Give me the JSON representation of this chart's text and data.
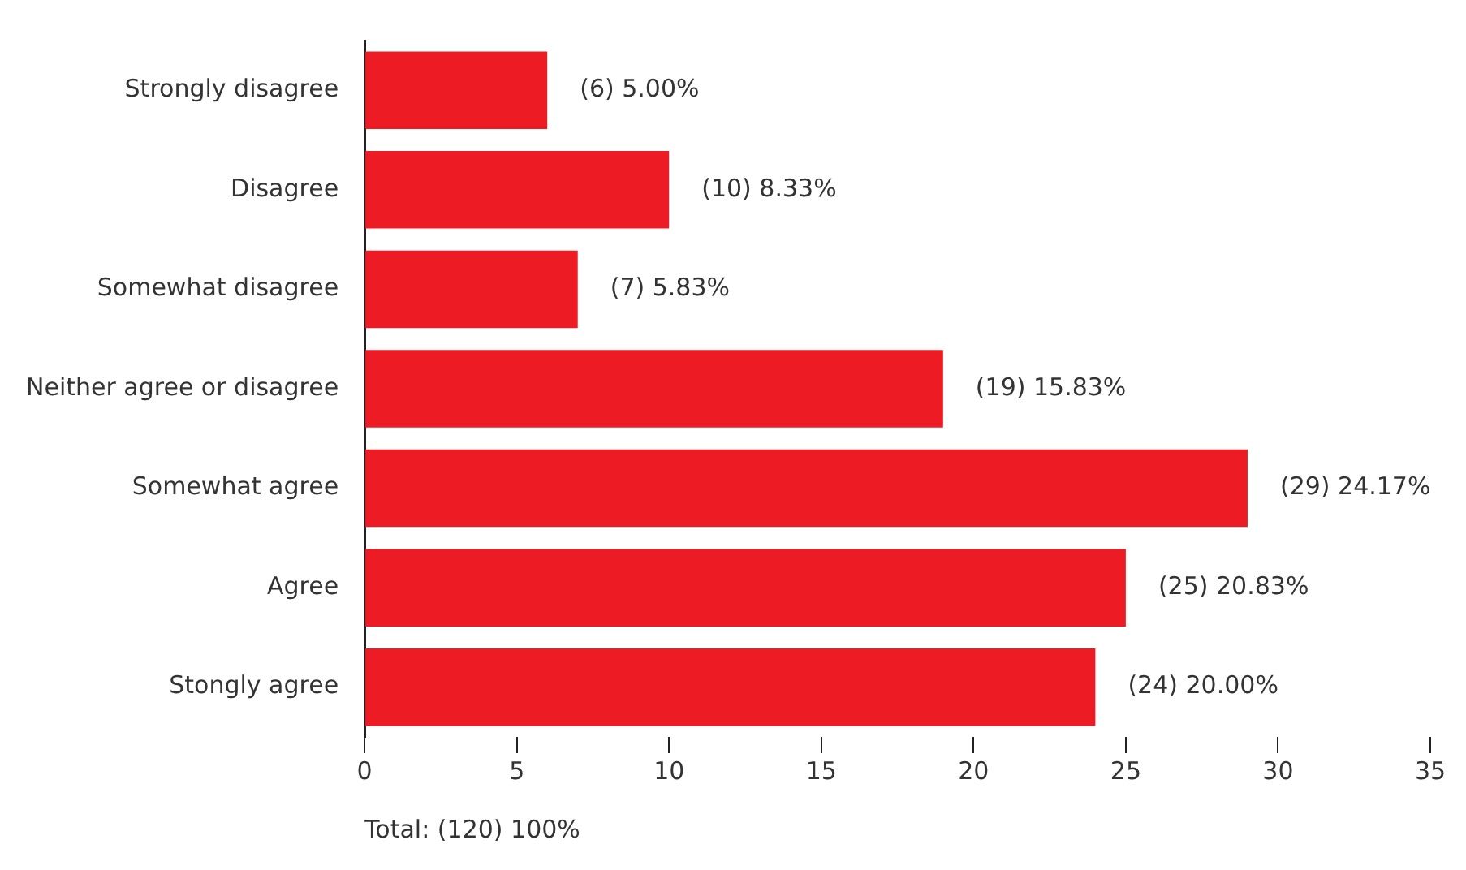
{
  "chart_data": {
    "type": "bar",
    "orientation": "horizontal",
    "categories": [
      "Strongly disagree",
      "Disagree",
      "Somewhat disagree",
      "Neither agree or disagree",
      "Somewhat agree",
      "Agree",
      "Stongly agree"
    ],
    "values": [
      6,
      10,
      7,
      19,
      29,
      25,
      24
    ],
    "value_labels": [
      "(6) 5.00%",
      "(10) 8.33%",
      "(7) 5.83%",
      "(19) 15.83%",
      "(29) 24.17%",
      "(25) 20.83%",
      "(24) 20.00%"
    ],
    "color": "#ed1c24",
    "xlim": [
      0,
      35
    ],
    "xticks": [
      0,
      5,
      10,
      15,
      20,
      25,
      30,
      35
    ],
    "grid": false,
    "legend": false,
    "annotations": [
      "Total: (120) 100%"
    ]
  }
}
